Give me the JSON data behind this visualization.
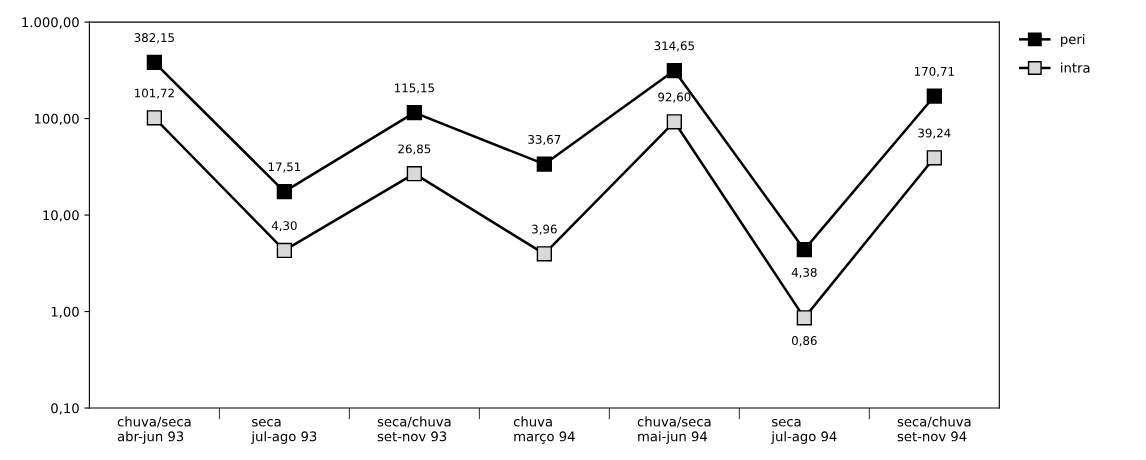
{
  "chart_data": {
    "type": "line",
    "categories": [
      "chuva/seca\nabr-jun 93",
      "seca\njul-ago 93",
      "seca/chuva\nset-nov 93",
      "chuva\nmarço 94",
      "chuva/seca\nmai-jun 94",
      "seca\njul-ago 94",
      "seca/chuva\nset-nov 94"
    ],
    "series": [
      {
        "name": "peri",
        "color": "#000000",
        "values": [
          382.15,
          17.51,
          115.15,
          33.67,
          314.65,
          4.38,
          170.71
        ],
        "value_labels": [
          "382,15",
          "17,51",
          "115,15",
          "33,67",
          "314,65",
          "4,38",
          "170,71"
        ]
      },
      {
        "name": "intra",
        "color": "#d9d9d9",
        "values": [
          101.72,
          4.3,
          26.85,
          3.96,
          92.6,
          0.86,
          39.24
        ],
        "value_labels": [
          "101,72",
          "4,30",
          "26,85",
          "3,96",
          "92,60",
          "0,86",
          "39,24"
        ]
      }
    ],
    "log": "y",
    "ylim": [
      0.1,
      1000
    ],
    "yticks": [
      {
        "value": 0.1,
        "label": "0,10"
      },
      {
        "value": 1,
        "label": "1,00"
      },
      {
        "value": 10,
        "label": "10,00"
      },
      {
        "value": 100,
        "label": "100,00"
      },
      {
        "value": 1000,
        "label": "1.000,00"
      }
    ],
    "grid": false,
    "legend": "top right",
    "marker": "square",
    "line_style": "solid"
  }
}
